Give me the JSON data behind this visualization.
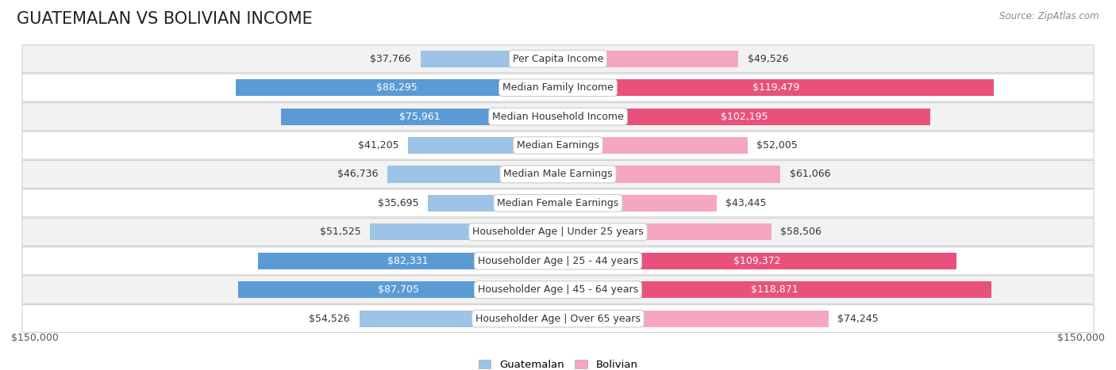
{
  "title": "GUATEMALAN VS BOLIVIAN INCOME",
  "source": "Source: ZipAtlas.com",
  "categories": [
    "Per Capita Income",
    "Median Family Income",
    "Median Household Income",
    "Median Earnings",
    "Median Male Earnings",
    "Median Female Earnings",
    "Householder Age | Under 25 years",
    "Householder Age | 25 - 44 years",
    "Householder Age | 45 - 64 years",
    "Householder Age | Over 65 years"
  ],
  "guatemalan_values": [
    37766,
    88295,
    75961,
    41205,
    46736,
    35695,
    51525,
    82331,
    87705,
    54526
  ],
  "bolivian_values": [
    49526,
    119479,
    102195,
    52005,
    61066,
    43445,
    58506,
    109372,
    118871,
    74245
  ],
  "guatemalan_labels": [
    "$37,766",
    "$88,295",
    "$75,961",
    "$41,205",
    "$46,736",
    "$35,695",
    "$51,525",
    "$82,331",
    "$87,705",
    "$54,526"
  ],
  "bolivian_labels": [
    "$49,526",
    "$119,479",
    "$102,195",
    "$52,005",
    "$61,066",
    "$43,445",
    "$58,506",
    "$109,372",
    "$118,871",
    "$74,245"
  ],
  "max_value": 150000,
  "guatemalan_color_dark": "#5b9bd5",
  "guatemalan_color_light": "#9dc3e6",
  "bolivian_color_dark": "#e8527a",
  "bolivian_color_light": "#f4a7be",
  "background_color": "#ffffff",
  "row_bg_light": "#f2f2f2",
  "row_bg_white": "#ffffff",
  "title_fontsize": 15,
  "label_fontsize": 9,
  "cat_fontsize": 9,
  "legend_guatemalan": "Guatemalan",
  "legend_bolivian": "Bolivian",
  "axis_label_left": "$150,000",
  "axis_label_right": "$150,000",
  "large_threshold_g": 60000,
  "large_threshold_b": 75000
}
